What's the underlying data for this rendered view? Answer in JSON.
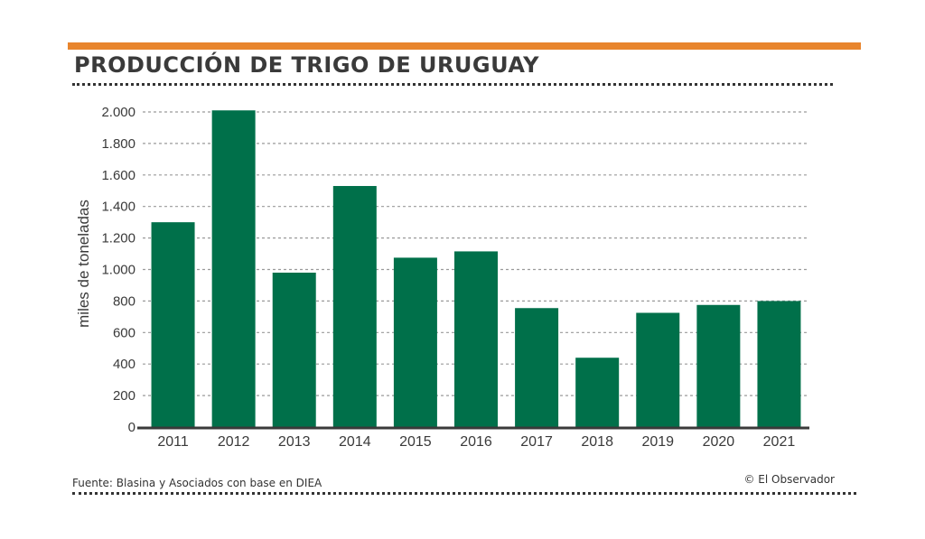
{
  "header": {
    "title": "PRODUCCIÓN DE TRIGO DE URUGUAY"
  },
  "footer": {
    "source": "Fuente: Blasina y Asociados con base en DIEA",
    "credit": "© El Observador"
  },
  "colors": {
    "accent": "#e8852d",
    "bar": "#00704a",
    "grid": "#9a9a9a",
    "axis": "#3a3a3a"
  },
  "chart_data": {
    "type": "bar",
    "title": "PRODUCCIÓN DE TRIGO DE URUGUAY",
    "xlabel": "",
    "ylabel": "miles de toneladas",
    "categories": [
      "2011",
      "2012",
      "2013",
      "2014",
      "2015",
      "2016",
      "2017",
      "2018",
      "2019",
      "2020",
      "2021"
    ],
    "values": [
      1300,
      2010,
      980,
      1530,
      1075,
      1115,
      755,
      440,
      725,
      775,
      800
    ],
    "ylim": [
      0,
      2000
    ],
    "yticks": [
      0,
      200,
      400,
      600,
      800,
      1000,
      1200,
      1400,
      1600,
      1800,
      2000
    ],
    "ytick_labels": [
      "0",
      "200",
      "400",
      "600",
      "800",
      "1.000",
      "1.200",
      "1.400",
      "1.600",
      "1.800",
      "2.000"
    ],
    "grid": true,
    "legend": "none"
  }
}
